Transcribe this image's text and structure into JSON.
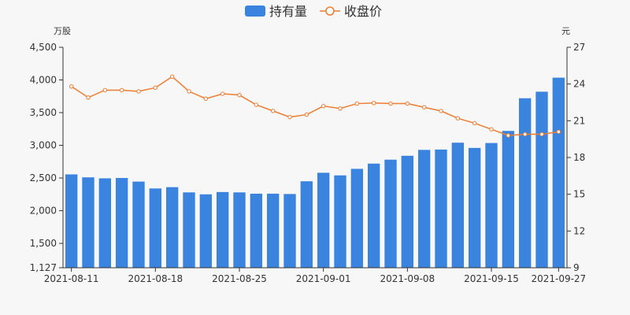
{
  "chart_data": {
    "type": "bar+line",
    "legend": {
      "position": "top-center",
      "items": [
        {
          "name": "持有量",
          "color": "#3a84e0",
          "marker": "bar"
        },
        {
          "name": "收盘价",
          "color": "#ed7d31",
          "marker": "line-circle"
        }
      ]
    },
    "left_axis": {
      "unit": "万股",
      "range": [
        1127,
        4500
      ],
      "ticks": [
        "1,127",
        "1,500",
        "2,000",
        "2,500",
        "3,000",
        "3,500",
        "4,000",
        "4,500"
      ],
      "tick_values": [
        1127,
        1500,
        2000,
        2500,
        3000,
        3500,
        4000,
        4500
      ]
    },
    "right_axis": {
      "unit": "元",
      "range": [
        9,
        27
      ],
      "ticks": [
        "9",
        "12",
        "15",
        "18",
        "21",
        "24",
        "27"
      ],
      "tick_values": [
        9,
        12,
        15,
        18,
        21,
        24,
        27
      ]
    },
    "x_tick_labels": [
      {
        "label": "2021-08-11",
        "index": 0
      },
      {
        "label": "2021-08-18",
        "index": 5
      },
      {
        "label": "2021-08-25",
        "index": 10
      },
      {
        "label": "2021-09-01",
        "index": 15
      },
      {
        "label": "2021-09-08",
        "index": 20
      },
      {
        "label": "2021-09-15",
        "index": 25
      },
      {
        "label": "2021-09-27",
        "index": 29
      }
    ],
    "grid": false,
    "series": [
      {
        "name": "持有量",
        "type": "bar",
        "axis": "left",
        "color": "#3a84e0",
        "values": [
          2555,
          2510,
          2495,
          2500,
          2445,
          2340,
          2360,
          2280,
          2250,
          2285,
          2280,
          2260,
          2260,
          2255,
          2450,
          2580,
          2540,
          2640,
          2720,
          2780,
          2840,
          2930,
          2935,
          3040,
          2960,
          3035,
          3220,
          3720,
          3820,
          4035
        ]
      },
      {
        "name": "收盘价",
        "type": "line",
        "axis": "right",
        "color": "#ed7d31",
        "values": [
          23.8,
          22.9,
          23.5,
          23.5,
          23.4,
          23.7,
          24.6,
          23.4,
          22.8,
          23.2,
          23.1,
          22.3,
          21.8,
          21.3,
          21.5,
          22.2,
          22.0,
          22.4,
          22.45,
          22.4,
          22.4,
          22.1,
          21.8,
          21.2,
          20.8,
          20.3,
          19.8,
          19.9,
          19.9,
          20.1
        ]
      }
    ]
  }
}
